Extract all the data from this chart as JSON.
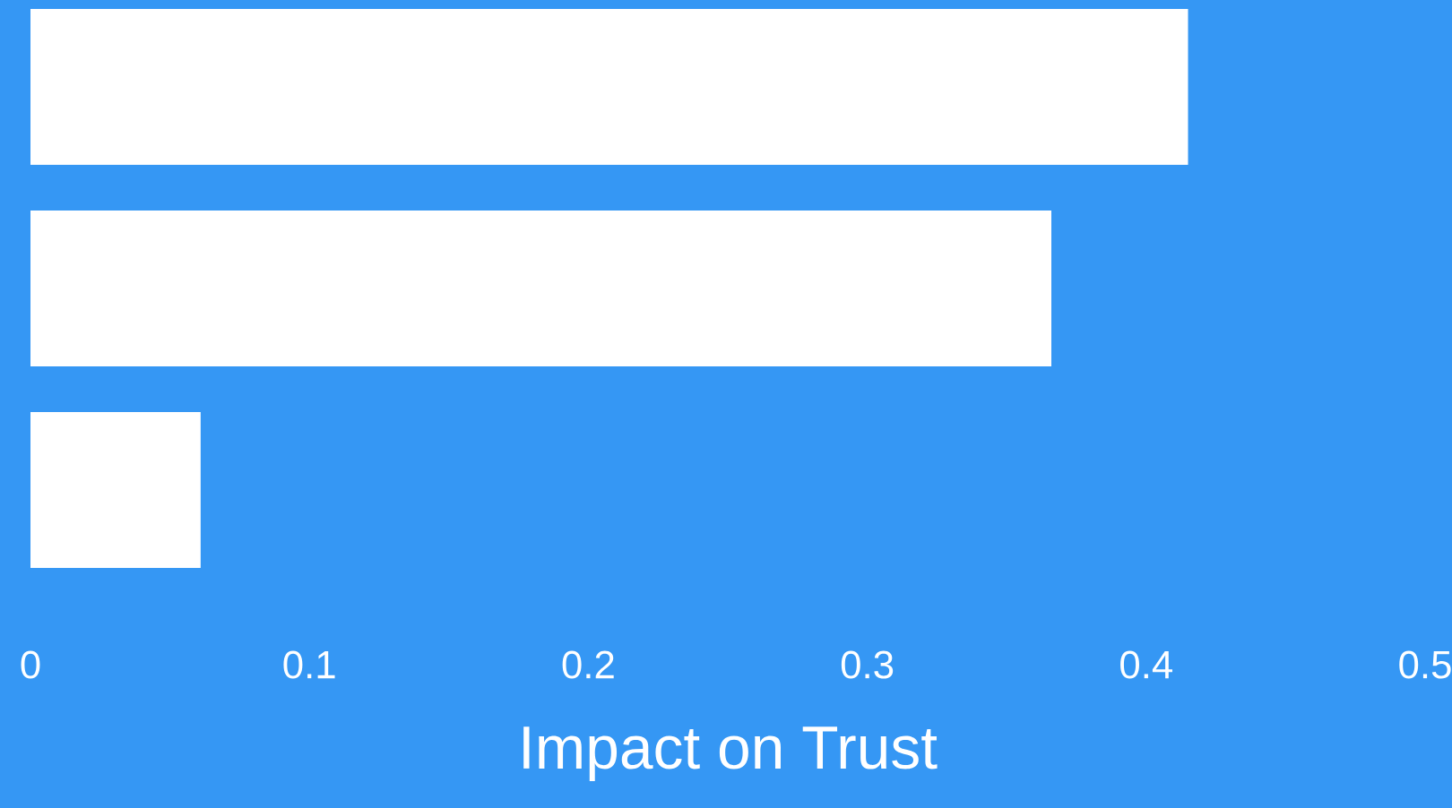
{
  "chart_data": {
    "type": "bar",
    "orientation": "horizontal",
    "categories": [
      null,
      null,
      null
    ],
    "values": [
      0.415,
      0.366,
      0.061
    ],
    "color": "#ffffff",
    "xlim": [
      0,
      0.5
    ],
    "xticks": [
      0,
      0.1,
      0.2,
      0.3,
      0.4,
      0.5
    ],
    "xlabel": "Impact on Trust"
  }
}
